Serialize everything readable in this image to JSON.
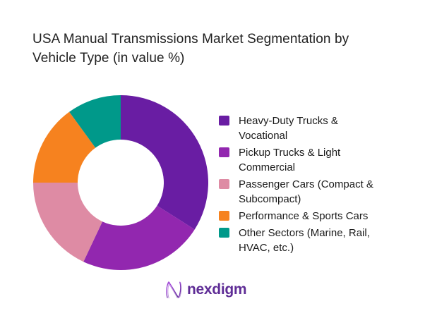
{
  "title": "USA Manual Transmissions Market Segmentation by Vehicle Type (in value %)",
  "chart_data": {
    "type": "pie",
    "subtype": "donut",
    "title": "USA Manual Transmissions Market Segmentation by Vehicle Type (in value %)",
    "unit": "% of value",
    "segments": [
      {
        "label": "Heavy-Duty Trucks & Vocational",
        "value": 34,
        "color": "#691DA3"
      },
      {
        "label": "Pickup Trucks & Light Commercial",
        "value": 23,
        "color": "#9227AF"
      },
      {
        "label": "Passenger Cars (Compact & Subcompact)",
        "value": 18,
        "color": "#DE8BA4"
      },
      {
        "label": "Performance & Sports Cars",
        "value": 15,
        "color": "#F6821F"
      },
      {
        "label": "Other Sectors (Marine, Rail, HVAC, etc.)",
        "value": 10,
        "color": "#00998A"
      }
    ],
    "start_angle_deg": 0,
    "direction": "clockwise",
    "inner_radius_ratio": 0.49,
    "legend_position": "right",
    "grid": false,
    "note": "No numeric data labels are shown in the chart; values estimated from arc angles."
  },
  "logo": {
    "text": "nexdigm",
    "color": "#5F2D96",
    "icon": "nexdigm-wave-n-icon"
  },
  "colors": {
    "background": "#ffffff",
    "title_text": "#212121",
    "legend_text": "#1a1a1a"
  }
}
